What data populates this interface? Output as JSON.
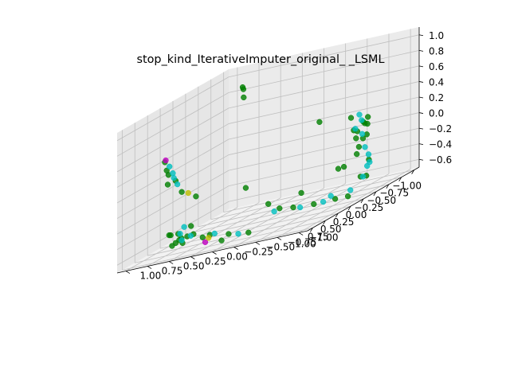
{
  "chart_data": {
    "type": "scatter",
    "projection": "3d",
    "title": "stop_kind_IterativeImputer_original_ _LSML",
    "xlabel": "",
    "ylabel": "",
    "zlabel": "",
    "xlim": [
      -1.1,
      1.1
    ],
    "ylim": [
      -1.1,
      1.1
    ],
    "zlim": [
      -0.7,
      1.1
    ],
    "x_ticks": [
      "−1.00",
      "−0.75",
      "−0.50",
      "−0.25",
      "0.00",
      "0.25",
      "0.50",
      "0.75",
      "1.00"
    ],
    "y_ticks": [
      "−1.00",
      "−0.75",
      "−0.50",
      "−0.25",
      "0.00",
      "0.25",
      "0.50",
      "0.75",
      "1.00"
    ],
    "z_ticks": [
      "−0.6",
      "−0.4",
      "−0.2",
      "0.0",
      "0.2",
      "0.4",
      "0.6",
      "0.8",
      "1.0"
    ],
    "grid": true,
    "colors": {
      "green": "#008000",
      "cyan": "#00bfbf",
      "magenta": "#bf00bf",
      "yellow": "#bfbf00",
      "pane_left": "#e6e6e6",
      "pane_right": "#ebebeb",
      "pane_floor": "#f2f2f2",
      "grid": "#bfbfbf"
    },
    "series": [
      {
        "color": "green",
        "points": [
          [
            -0.85,
            -0.6,
            0.1
          ],
          [
            -0.82,
            -0.55,
            0.0
          ],
          [
            -0.88,
            -0.5,
            -0.1
          ],
          [
            -0.9,
            -0.62,
            0.05
          ],
          [
            -0.8,
            -0.58,
            -0.2
          ],
          [
            -0.84,
            -0.66,
            0.15
          ],
          [
            -0.86,
            -0.52,
            -0.3
          ],
          [
            -0.78,
            -0.5,
            0.2
          ],
          [
            -0.92,
            -0.45,
            0.0
          ],
          [
            -0.75,
            -0.7,
            -0.05
          ],
          [
            -0.7,
            -0.4,
            -0.4
          ],
          [
            -0.62,
            -0.8,
            -0.35
          ],
          [
            -0.4,
            -0.9,
            -0.5
          ],
          [
            -0.2,
            -0.95,
            -0.45
          ],
          [
            0.1,
            -0.98,
            -0.6
          ],
          [
            0.3,
            -0.95,
            -0.55
          ],
          [
            0.55,
            -0.85,
            -0.5
          ],
          [
            0.7,
            -0.7,
            -0.45
          ],
          [
            0.8,
            -0.6,
            -0.4
          ],
          [
            0.85,
            -0.5,
            -0.3
          ],
          [
            0.9,
            -0.3,
            -0.6
          ],
          [
            0.95,
            -0.1,
            -0.55
          ],
          [
            0.98,
            0.1,
            -0.5
          ],
          [
            0.96,
            0.3,
            -0.45
          ],
          [
            0.9,
            0.5,
            -0.5
          ],
          [
            0.8,
            0.6,
            -0.55
          ],
          [
            0.7,
            0.7,
            -0.6
          ],
          [
            0.5,
            0.85,
            -0.5
          ],
          [
            0.3,
            0.95,
            -0.55
          ],
          [
            0.1,
            0.98,
            -0.6
          ],
          [
            -0.1,
            0.95,
            -0.58
          ],
          [
            0.6,
            0.8,
            0.3
          ],
          [
            0.55,
            0.85,
            0.35
          ],
          [
            0.5,
            0.9,
            0.45
          ],
          [
            0.7,
            0.75,
            0.2
          ],
          [
            0.8,
            0.6,
            0.25
          ],
          [
            0.85,
            0.5,
            0.1
          ],
          [
            0.4,
            0.6,
            -0.1
          ],
          [
            0.1,
            0.2,
            -0.2
          ],
          [
            -0.2,
            0.4,
            0.9
          ],
          [
            -0.35,
            0.5,
            1.0
          ],
          [
            -0.45,
            0.55,
            0.95
          ],
          [
            -0.5,
            -0.3,
            0.3
          ],
          [
            -0.3,
            -0.7,
            -0.3
          ],
          [
            0.2,
            -0.5,
            -0.4
          ],
          [
            0.95,
            0.2,
            -0.52
          ],
          [
            0.88,
            0.42,
            -0.48
          ],
          [
            0.75,
            0.55,
            -0.58
          ],
          [
            0.6,
            0.65,
            -0.55
          ],
          [
            0.92,
            0.0,
            -0.62
          ],
          [
            -0.88,
            -0.58,
            -0.12
          ],
          [
            -0.83,
            -0.63,
            0.08
          ]
        ]
      },
      {
        "color": "cyan",
        "points": [
          [
            -0.87,
            -0.57,
            0.12
          ],
          [
            -0.83,
            -0.6,
            -0.05
          ],
          [
            -0.9,
            -0.48,
            0.02
          ],
          [
            -0.8,
            -0.65,
            -0.22
          ],
          [
            -0.86,
            -0.55,
            0.2
          ],
          [
            -0.7,
            -0.75,
            -0.3
          ],
          [
            -0.5,
            -0.85,
            -0.4
          ],
          [
            -0.3,
            -0.92,
            -0.48
          ],
          [
            0.0,
            -0.95,
            -0.55
          ],
          [
            0.45,
            -0.9,
            -0.52
          ],
          [
            0.65,
            -0.75,
            -0.48
          ],
          [
            0.82,
            -0.55,
            -0.42
          ],
          [
            0.93,
            -0.2,
            -0.58
          ],
          [
            0.97,
            0.05,
            -0.5
          ],
          [
            0.93,
            0.35,
            -0.47
          ],
          [
            0.85,
            0.5,
            -0.52
          ],
          [
            0.65,
            0.72,
            0.32
          ],
          [
            0.58,
            0.8,
            0.4
          ],
          [
            0.75,
            0.65,
            0.28
          ],
          [
            0.8,
            0.58,
            0.2
          ],
          [
            -0.6,
            -0.82,
            -0.38
          ],
          [
            0.3,
            -0.9,
            -0.5
          ],
          [
            0.2,
            0.9,
            -0.58
          ],
          [
            0.0,
            0.97,
            -0.55
          ]
        ]
      },
      {
        "color": "magenta",
        "points": [
          [
            0.62,
            0.82,
            0.5
          ],
          [
            0.9,
            0.2,
            -0.6
          ]
        ]
      },
      {
        "color": "yellow",
        "points": [
          [
            0.55,
            0.6,
            0.0
          ],
          [
            0.92,
            0.15,
            -0.55
          ]
        ]
      }
    ]
  }
}
